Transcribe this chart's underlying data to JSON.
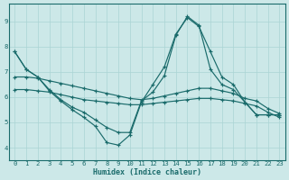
{
  "xlabel": "Humidex (Indice chaleur)",
  "bg_color": "#cce8e8",
  "line_color": "#1a6b6b",
  "grid_color": "#aad4d4",
  "xlim": [
    -0.5,
    23.5
  ],
  "ylim": [
    3.5,
    9.7
  ],
  "xticks": [
    0,
    1,
    2,
    3,
    4,
    5,
    6,
    7,
    8,
    9,
    10,
    11,
    12,
    13,
    14,
    15,
    16,
    17,
    18,
    19,
    20,
    21,
    22,
    23
  ],
  "yticks": [
    4,
    5,
    6,
    7,
    8,
    9
  ],
  "lines": [
    [
      7.8,
      7.1,
      6.8,
      6.25,
      5.85,
      5.5,
      5.2,
      4.85,
      4.2,
      4.1,
      4.5,
      5.8,
      6.5,
      7.2,
      8.5,
      9.15,
      8.8,
      7.8,
      6.8,
      6.5,
      5.8,
      5.3,
      5.3,
      5.3
    ],
    [
      7.8,
      7.1,
      6.8,
      6.3,
      5.9,
      5.6,
      5.4,
      5.1,
      4.8,
      4.6,
      4.6,
      5.85,
      6.2,
      6.85,
      8.45,
      9.2,
      8.85,
      7.1,
      6.5,
      6.3,
      5.8,
      5.3,
      5.3,
      5.3
    ],
    [
      6.8,
      6.8,
      6.75,
      6.65,
      6.55,
      6.45,
      6.35,
      6.25,
      6.15,
      6.05,
      5.95,
      5.9,
      5.95,
      6.05,
      6.15,
      6.25,
      6.35,
      6.35,
      6.25,
      6.15,
      5.95,
      5.85,
      5.55,
      5.35
    ],
    [
      6.3,
      6.3,
      6.25,
      6.2,
      6.1,
      6.0,
      5.9,
      5.85,
      5.8,
      5.75,
      5.7,
      5.7,
      5.75,
      5.8,
      5.85,
      5.9,
      5.95,
      5.95,
      5.9,
      5.85,
      5.75,
      5.65,
      5.4,
      5.2
    ]
  ]
}
